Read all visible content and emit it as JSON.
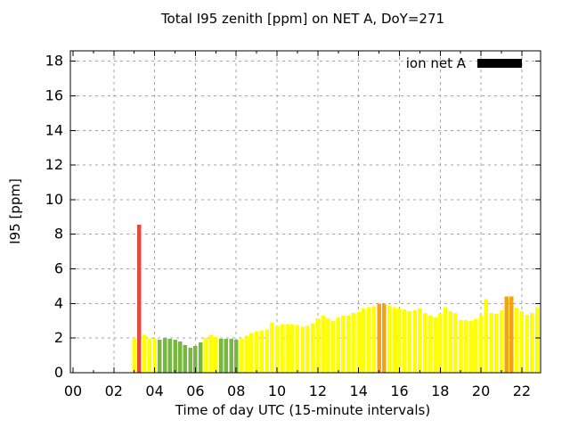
{
  "title": "Total I95 zenith [ppm] on NET A, DoY=271",
  "legend": {
    "label": "ion net A",
    "swatch_color": "#000000"
  },
  "colors": {
    "yellow": "#ffff00",
    "green": "#77b940",
    "orange": "#f7a10d",
    "red": "#e8473e",
    "grid": "#a3a3a3",
    "axis": "#000000",
    "background": "#ffffff"
  },
  "chart_data": {
    "type": "bar",
    "title": "Total I95 zenith [ppm] on NET A, DoY=271",
    "xlabel": "Time of day UTC (15-minute intervals)",
    "ylabel": "I95 [ppm]",
    "legend_entry": "ion net A",
    "interval_minutes": 15,
    "grid": true,
    "legend_position": "top-right-inside",
    "xlim": [
      -0.13,
      22.92
    ],
    "ylim": [
      0,
      18.6
    ],
    "x_ticks": [
      {
        "t": 0,
        "label": "00"
      },
      {
        "t": 2,
        "label": "02"
      },
      {
        "t": 4,
        "label": "04"
      },
      {
        "t": 6,
        "label": "06"
      },
      {
        "t": 8,
        "label": "08"
      },
      {
        "t": 10,
        "label": "10"
      },
      {
        "t": 12,
        "label": "12"
      },
      {
        "t": 14,
        "label": "14"
      },
      {
        "t": 16,
        "label": "16"
      },
      {
        "t": 18,
        "label": "18"
      },
      {
        "t": 20,
        "label": "20"
      },
      {
        "t": 22,
        "label": "22"
      }
    ],
    "x_minor_ticks": [
      1,
      3,
      5,
      7,
      9,
      11,
      13,
      15,
      17,
      19,
      21
    ],
    "y_ticks": [
      {
        "v": 0,
        "label": "0"
      },
      {
        "v": 2,
        "label": "2"
      },
      {
        "v": 4,
        "label": "4"
      },
      {
        "v": 6,
        "label": "6"
      },
      {
        "v": 8,
        "label": "8"
      },
      {
        "v": 10,
        "label": "10"
      },
      {
        "v": 12,
        "label": "12"
      },
      {
        "v": 14,
        "label": "14"
      },
      {
        "v": 16,
        "label": "16"
      },
      {
        "v": 18,
        "label": "18"
      }
    ],
    "bars": [
      {
        "t": "03:00",
        "v": 2.0,
        "c": "yellow"
      },
      {
        "t": "03:15",
        "v": 8.55,
        "c": "red"
      },
      {
        "t": "03:30",
        "v": 2.2,
        "c": "yellow"
      },
      {
        "t": "03:45",
        "v": 1.95,
        "c": "yellow"
      },
      {
        "t": "04:00",
        "v": 1.95,
        "c": "yellow"
      },
      {
        "t": "04:15",
        "v": 1.9,
        "c": "green"
      },
      {
        "t": "04:30",
        "v": 2.0,
        "c": "green"
      },
      {
        "t": "04:45",
        "v": 1.95,
        "c": "green"
      },
      {
        "t": "05:00",
        "v": 1.9,
        "c": "green"
      },
      {
        "t": "05:15",
        "v": 1.8,
        "c": "green"
      },
      {
        "t": "05:30",
        "v": 1.6,
        "c": "green"
      },
      {
        "t": "05:45",
        "v": 1.45,
        "c": "green"
      },
      {
        "t": "06:00",
        "v": 1.55,
        "c": "green"
      },
      {
        "t": "06:15",
        "v": 1.75,
        "c": "green"
      },
      {
        "t": "06:30",
        "v": 2.0,
        "c": "yellow"
      },
      {
        "t": "06:45",
        "v": 2.2,
        "c": "yellow"
      },
      {
        "t": "07:00",
        "v": 2.05,
        "c": "yellow"
      },
      {
        "t": "07:15",
        "v": 1.95,
        "c": "green"
      },
      {
        "t": "07:30",
        "v": 1.95,
        "c": "green"
      },
      {
        "t": "07:45",
        "v": 1.95,
        "c": "green"
      },
      {
        "t": "08:00",
        "v": 1.9,
        "c": "green"
      },
      {
        "t": "08:15",
        "v": 2.0,
        "c": "yellow"
      },
      {
        "t": "08:30",
        "v": 2.15,
        "c": "yellow"
      },
      {
        "t": "08:45",
        "v": 2.3,
        "c": "yellow"
      },
      {
        "t": "09:00",
        "v": 2.4,
        "c": "yellow"
      },
      {
        "t": "09:15",
        "v": 2.45,
        "c": "yellow"
      },
      {
        "t": "09:30",
        "v": 2.5,
        "c": "yellow"
      },
      {
        "t": "09:45",
        "v": 2.9,
        "c": "yellow"
      },
      {
        "t": "10:00",
        "v": 2.7,
        "c": "yellow"
      },
      {
        "t": "10:15",
        "v": 2.8,
        "c": "yellow"
      },
      {
        "t": "10:30",
        "v": 2.8,
        "c": "yellow"
      },
      {
        "t": "10:45",
        "v": 2.8,
        "c": "yellow"
      },
      {
        "t": "11:00",
        "v": 2.75,
        "c": "yellow"
      },
      {
        "t": "11:15",
        "v": 2.65,
        "c": "yellow"
      },
      {
        "t": "11:30",
        "v": 2.7,
        "c": "yellow"
      },
      {
        "t": "11:45",
        "v": 2.85,
        "c": "yellow"
      },
      {
        "t": "12:00",
        "v": 3.15,
        "c": "yellow"
      },
      {
        "t": "12:15",
        "v": 3.3,
        "c": "yellow"
      },
      {
        "t": "12:30",
        "v": 3.15,
        "c": "yellow"
      },
      {
        "t": "12:45",
        "v": 3.0,
        "c": "yellow"
      },
      {
        "t": "13:00",
        "v": 3.2,
        "c": "yellow"
      },
      {
        "t": "13:15",
        "v": 3.3,
        "c": "yellow"
      },
      {
        "t": "13:30",
        "v": 3.3,
        "c": "yellow"
      },
      {
        "t": "13:45",
        "v": 3.45,
        "c": "yellow"
      },
      {
        "t": "14:00",
        "v": 3.5,
        "c": "yellow"
      },
      {
        "t": "14:15",
        "v": 3.7,
        "c": "yellow"
      },
      {
        "t": "14:30",
        "v": 3.8,
        "c": "yellow"
      },
      {
        "t": "14:45",
        "v": 3.85,
        "c": "yellow"
      },
      {
        "t": "15:00",
        "v": 4.0,
        "c": "orange"
      },
      {
        "t": "15:15",
        "v": 4.0,
        "c": "orange"
      },
      {
        "t": "15:30",
        "v": 3.9,
        "c": "yellow"
      },
      {
        "t": "15:45",
        "v": 3.8,
        "c": "yellow"
      },
      {
        "t": "16:00",
        "v": 3.7,
        "c": "yellow"
      },
      {
        "t": "16:15",
        "v": 3.65,
        "c": "yellow"
      },
      {
        "t": "16:30",
        "v": 3.55,
        "c": "yellow"
      },
      {
        "t": "16:45",
        "v": 3.6,
        "c": "yellow"
      },
      {
        "t": "17:00",
        "v": 3.7,
        "c": "yellow"
      },
      {
        "t": "17:15",
        "v": 3.45,
        "c": "yellow"
      },
      {
        "t": "17:30",
        "v": 3.3,
        "c": "yellow"
      },
      {
        "t": "17:45",
        "v": 3.2,
        "c": "yellow"
      },
      {
        "t": "18:00",
        "v": 3.4,
        "c": "yellow"
      },
      {
        "t": "18:15",
        "v": 3.8,
        "c": "yellow"
      },
      {
        "t": "18:30",
        "v": 3.55,
        "c": "yellow"
      },
      {
        "t": "18:45",
        "v": 3.45,
        "c": "yellow"
      },
      {
        "t": "19:00",
        "v": 3.05,
        "c": "yellow"
      },
      {
        "t": "19:15",
        "v": 3.05,
        "c": "yellow"
      },
      {
        "t": "19:30",
        "v": 3.0,
        "c": "yellow"
      },
      {
        "t": "19:45",
        "v": 3.1,
        "c": "yellow"
      },
      {
        "t": "20:00",
        "v": 3.35,
        "c": "yellow"
      },
      {
        "t": "20:15",
        "v": 4.25,
        "c": "yellow"
      },
      {
        "t": "20:30",
        "v": 3.45,
        "c": "yellow"
      },
      {
        "t": "20:45",
        "v": 3.4,
        "c": "yellow"
      },
      {
        "t": "21:00",
        "v": 3.6,
        "c": "yellow"
      },
      {
        "t": "21:15",
        "v": 4.4,
        "c": "orange"
      },
      {
        "t": "21:30",
        "v": 4.4,
        "c": "orange"
      },
      {
        "t": "21:45",
        "v": 3.75,
        "c": "yellow"
      },
      {
        "t": "22:00",
        "v": 3.55,
        "c": "yellow"
      },
      {
        "t": "22:15",
        "v": 3.35,
        "c": "yellow"
      },
      {
        "t": "22:30",
        "v": 3.45,
        "c": "yellow"
      },
      {
        "t": "22:45",
        "v": 3.8,
        "c": "yellow"
      }
    ]
  }
}
